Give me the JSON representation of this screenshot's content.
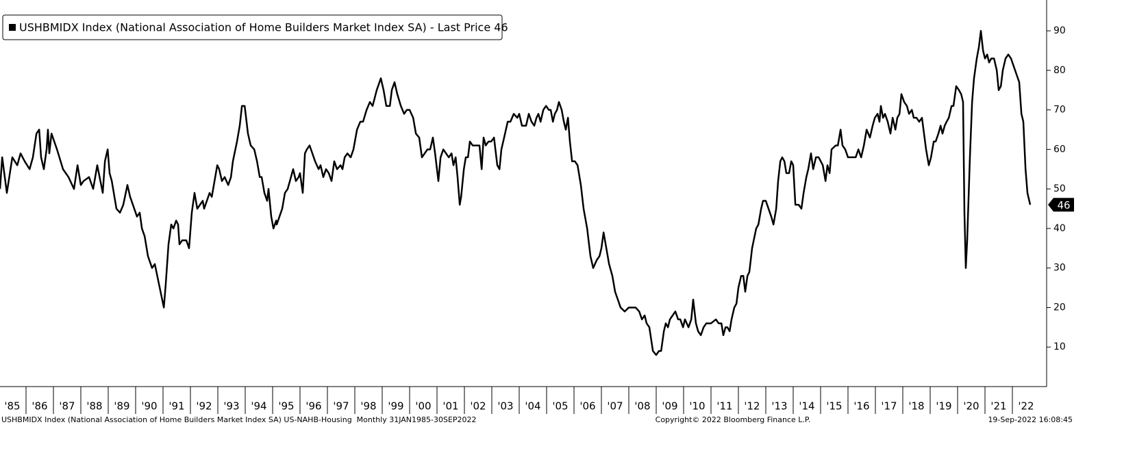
{
  "chart_data": {
    "type": "line",
    "series": [
      {
        "name": "USHBMIDX Index (National Association of Home Builders Market Index SA) - Last Price 46",
        "color": "#000000",
        "values": [
          50,
          58,
          49,
          58,
          56,
          59,
          57,
          55,
          58,
          64,
          65,
          58,
          55,
          60,
          65,
          59,
          64,
          62,
          60,
          55,
          53,
          50,
          56,
          51,
          52,
          53,
          50,
          56,
          49,
          57,
          60,
          54,
          52,
          45,
          44,
          46,
          51,
          48,
          44,
          43,
          44,
          40,
          38,
          33,
          30,
          31,
          25,
          20,
          26,
          36,
          41,
          40,
          42,
          41,
          36,
          37,
          37,
          35,
          44,
          49,
          45,
          46,
          47,
          45,
          47,
          49,
          48,
          52,
          56,
          55,
          52,
          53,
          51,
          53,
          57,
          62,
          66,
          71,
          71,
          64,
          61,
          60,
          57,
          53,
          53,
          49,
          47,
          50,
          43,
          40,
          42,
          41,
          43,
          45,
          49,
          50,
          55,
          52,
          53,
          54,
          49,
          59,
          60,
          61,
          59,
          57,
          55,
          56,
          53,
          55,
          54,
          52,
          57,
          55,
          56,
          55,
          58,
          59,
          58,
          60,
          65,
          67,
          67,
          70,
          72,
          71,
          75,
          78,
          75,
          71,
          71,
          75,
          77,
          74,
          71,
          69,
          70,
          70,
          68,
          64,
          63,
          58,
          59,
          60,
          60,
          63,
          59,
          52,
          58,
          60,
          59,
          58,
          59,
          56,
          58,
          53,
          46,
          48,
          55,
          58,
          58,
          62,
          61,
          61,
          61,
          55,
          63,
          61,
          62,
          62,
          63,
          56,
          55,
          60,
          63,
          67,
          67,
          69,
          68,
          69,
          66,
          66,
          69,
          67,
          66,
          68,
          69,
          67,
          70,
          71,
          70,
          70,
          67,
          69,
          70,
          72,
          70,
          67,
          65,
          68,
          62,
          57,
          57,
          56,
          51,
          45,
          40,
          33,
          30,
          32,
          33,
          35,
          39,
          35,
          31,
          28,
          24,
          22,
          20,
          19,
          20,
          20,
          19,
          17,
          18,
          16,
          15,
          9,
          8,
          9,
          9,
          14,
          16,
          15,
          17,
          18,
          19,
          17,
          17,
          15,
          17,
          15,
          17,
          22,
          16,
          14,
          13,
          15,
          16,
          16,
          17,
          16,
          16,
          13,
          15,
          15,
          14,
          17,
          20,
          21,
          25,
          28,
          28,
          24,
          28,
          29,
          35,
          40,
          41,
          45,
          47,
          47,
          45,
          43,
          41,
          45,
          52,
          57,
          58,
          57,
          54,
          54,
          57,
          56,
          46,
          46,
          45,
          49,
          53,
          55,
          59,
          55,
          58,
          58,
          56,
          52,
          56,
          54,
          60,
          61,
          61,
          65,
          61,
          60,
          58,
          58,
          58,
          60,
          58,
          61,
          65,
          63,
          66,
          68,
          69,
          67,
          71,
          68,
          69,
          67,
          64,
          68,
          65,
          68,
          69,
          74,
          72,
          71,
          69,
          70,
          68,
          68,
          67,
          68,
          60,
          56,
          58,
          62,
          62,
          64,
          66,
          64,
          66,
          67,
          68,
          71,
          71,
          76,
          75,
          74,
          72,
          44,
          30,
          37,
          58,
          72,
          78,
          83,
          86,
          90,
          85,
          83,
          84,
          82,
          83,
          83,
          80,
          75,
          76,
          80,
          83,
          84,
          83,
          81,
          79,
          77,
          69,
          67,
          55,
          49,
          46
        ]
      }
    ],
    "x": [
      1985.05,
      1985.13,
      1985.3,
      1985.5,
      1985.68,
      1985.8,
      1985.95,
      1986.13,
      1986.25,
      1986.38,
      1986.48,
      1986.55,
      1986.65,
      1986.75,
      1986.8,
      1986.85,
      1986.93,
      1987.03,
      1987.13,
      1987.35,
      1987.55,
      1987.75,
      1987.88,
      1988.0,
      1988.1,
      1988.3,
      1988.45,
      1988.6,
      1988.8,
      1988.88,
      1988.98,
      1989.05,
      1989.13,
      1989.3,
      1989.43,
      1989.55,
      1989.7,
      1989.8,
      1990.0,
      1990.05,
      1990.15,
      1990.23,
      1990.33,
      1990.45,
      1990.6,
      1990.7,
      1990.88,
      1991.03,
      1991.1,
      1991.2,
      1991.3,
      1991.38,
      1991.48,
      1991.55,
      1991.6,
      1991.7,
      1991.85,
      1991.95,
      1992.05,
      1992.15,
      1992.25,
      1992.35,
      1992.45,
      1992.5,
      1992.6,
      1992.7,
      1992.78,
      1992.88,
      1992.98,
      1993.05,
      1993.15,
      1993.25,
      1993.38,
      1993.48,
      1993.55,
      1993.7,
      1993.8,
      1993.88,
      1993.98,
      1994.1,
      1994.2,
      1994.33,
      1994.43,
      1994.53,
      1994.6,
      1994.7,
      1994.8,
      1994.85,
      1994.95,
      1995.03,
      1995.13,
      1995.15,
      1995.25,
      1995.35,
      1995.45,
      1995.55,
      1995.75,
      1995.85,
      1995.95,
      1996.0,
      1996.1,
      1996.18,
      1996.25,
      1996.35,
      1996.45,
      1996.55,
      1996.68,
      1996.75,
      1996.85,
      1996.95,
      1997.05,
      1997.15,
      1997.25,
      1997.35,
      1997.48,
      1997.55,
      1997.63,
      1997.73,
      1997.85,
      1997.95,
      1998.08,
      1998.2,
      1998.3,
      1998.43,
      1998.55,
      1998.65,
      1998.8,
      1998.95,
      1999.05,
      1999.15,
      1999.28,
      1999.35,
      1999.45,
      1999.55,
      1999.68,
      1999.8,
      1999.9,
      2000.0,
      2000.13,
      2000.23,
      2000.35,
      2000.45,
      2000.55,
      2000.65,
      2000.75,
      2000.85,
      2000.93,
      2001.05,
      2001.13,
      2001.23,
      2001.33,
      2001.43,
      2001.53,
      2001.6,
      2001.68,
      2001.75,
      2001.83,
      2001.88,
      2001.98,
      2002.05,
      2002.13,
      2002.2,
      2002.3,
      2002.45,
      2002.55,
      2002.63,
      2002.7,
      2002.78,
      2002.88,
      2002.98,
      2003.08,
      2003.2,
      2003.28,
      2003.35,
      2003.45,
      2003.58,
      2003.68,
      2003.8,
      2003.93,
      2004.0,
      2004.1,
      2004.25,
      2004.35,
      2004.45,
      2004.55,
      2004.63,
      2004.7,
      2004.78,
      2004.88,
      2004.98,
      2005.08,
      2005.15,
      2005.23,
      2005.3,
      2005.38,
      2005.45,
      2005.55,
      2005.63,
      2005.7,
      2005.78,
      2005.85,
      2005.93,
      2006.03,
      2006.13,
      2006.25,
      2006.35,
      2006.48,
      2006.6,
      2006.7,
      2006.83,
      2006.93,
      2007.0,
      2007.08,
      2007.18,
      2007.28,
      2007.4,
      2007.5,
      2007.6,
      2007.7,
      2007.85,
      2008.0,
      2008.25,
      2008.38,
      2008.48,
      2008.58,
      2008.65,
      2008.75,
      2008.88,
      2009.0,
      2009.1,
      2009.18,
      2009.28,
      2009.35,
      2009.43,
      2009.5,
      2009.6,
      2009.7,
      2009.8,
      2009.88,
      2009.98,
      2010.05,
      2010.18,
      2010.28,
      2010.35,
      2010.45,
      2010.53,
      2010.63,
      2010.73,
      2010.83,
      2011.0,
      2011.18,
      2011.28,
      2011.38,
      2011.45,
      2011.53,
      2011.6,
      2011.68,
      2011.75,
      2011.85,
      2011.93,
      2012.0,
      2012.1,
      2012.18,
      2012.25,
      2012.33,
      2012.4,
      2012.5,
      2012.65,
      2012.73,
      2012.83,
      2012.9,
      2013.0,
      2013.1,
      2013.2,
      2013.28,
      2013.38,
      2013.45,
      2013.53,
      2013.6,
      2013.68,
      2013.75,
      2013.85,
      2013.93,
      2014.0,
      2014.08,
      2014.2,
      2014.3,
      2014.38,
      2014.48,
      2014.55,
      2014.65,
      2014.73,
      2014.83,
      2014.93,
      2015.08,
      2015.18,
      2015.25,
      2015.33,
      2015.4,
      2015.55,
      2015.63,
      2015.73,
      2015.8,
      2015.9,
      2016.0,
      2016.15,
      2016.28,
      2016.38,
      2016.48,
      2016.58,
      2016.68,
      2016.8,
      2016.9,
      2016.98,
      2017.08,
      2017.15,
      2017.2,
      2017.28,
      2017.35,
      2017.45,
      2017.55,
      2017.63,
      2017.73,
      2017.8,
      2017.88,
      2017.95,
      2018.05,
      2018.15,
      2018.23,
      2018.33,
      2018.4,
      2018.5,
      2018.6,
      2018.7,
      2018.85,
      2018.95,
      2019.03,
      2019.13,
      2019.2,
      2019.3,
      2019.38,
      2019.45,
      2019.53,
      2019.6,
      2019.68,
      2019.78,
      2019.85,
      2019.95,
      2020.05,
      2020.13,
      2020.2,
      2020.25,
      2020.3,
      2020.35,
      2020.45,
      2020.53,
      2020.6,
      2020.7,
      2020.78,
      2020.85,
      2020.93,
      2021.0,
      2021.08,
      2021.15,
      2021.23,
      2021.33,
      2021.43,
      2021.5,
      2021.58,
      2021.65,
      2021.75,
      2021.85,
      2021.95,
      2022.05,
      2022.15,
      2022.25,
      2022.33,
      2022.4,
      2022.48,
      2022.55,
      2022.65
    ],
    "xlim": [
      1985.05,
      2023.25
    ],
    "xticks": [
      {
        "value": 1985,
        "label": "'85"
      },
      {
        "value": 1986,
        "label": "'86"
      },
      {
        "value": 1987,
        "label": "'87"
      },
      {
        "value": 1988,
        "label": "'88"
      },
      {
        "value": 1989,
        "label": "'89"
      },
      {
        "value": 1990,
        "label": "'90"
      },
      {
        "value": 1991,
        "label": "'91"
      },
      {
        "value": 1992,
        "label": "'92"
      },
      {
        "value": 1993,
        "label": "'93"
      },
      {
        "value": 1994,
        "label": "'94"
      },
      {
        "value": 1995,
        "label": "'95"
      },
      {
        "value": 1996,
        "label": "'96"
      },
      {
        "value": 1997,
        "label": "'97"
      },
      {
        "value": 1998,
        "label": "'98"
      },
      {
        "value": 1999,
        "label": "'99"
      },
      {
        "value": 2000,
        "label": "'00"
      },
      {
        "value": 2001,
        "label": "'01"
      },
      {
        "value": 2002,
        "label": "'02"
      },
      {
        "value": 2003,
        "label": "'03"
      },
      {
        "value": 2004,
        "label": "'04"
      },
      {
        "value": 2005,
        "label": "'05"
      },
      {
        "value": 2006,
        "label": "'06"
      },
      {
        "value": 2007,
        "label": "'07"
      },
      {
        "value": 2008,
        "label": "'08"
      },
      {
        "value": 2009,
        "label": "'09"
      },
      {
        "value": 2010,
        "label": "'10"
      },
      {
        "value": 2011,
        "label": "'11"
      },
      {
        "value": 2012,
        "label": "'12"
      },
      {
        "value": 2013,
        "label": "'13"
      },
      {
        "value": 2014,
        "label": "'14"
      },
      {
        "value": 2015,
        "label": "'15"
      },
      {
        "value": 2016,
        "label": "'16"
      },
      {
        "value": 2017,
        "label": "'17"
      },
      {
        "value": 2018,
        "label": "'18"
      },
      {
        "value": 2019,
        "label": "'19"
      },
      {
        "value": 2020,
        "label": "'20"
      },
      {
        "value": 2021,
        "label": "'21"
      },
      {
        "value": 2022,
        "label": "'22"
      }
    ],
    "ylim": [
      0,
      97.8
    ],
    "yticks": [
      10,
      20,
      30,
      40,
      50,
      60,
      70,
      80,
      90
    ],
    "grid": false,
    "legend": "top-left",
    "footer_left": "USHBMIDX Index (National Association of Home Builders Market Index SA) US-NAHB-Housing  Monthly 31JAN1985-30SEP2022",
    "footer_center": "Copyright© 2022 Bloomberg Finance L.P.",
    "footer_right": "19-Sep-2022 16:08:45"
  }
}
